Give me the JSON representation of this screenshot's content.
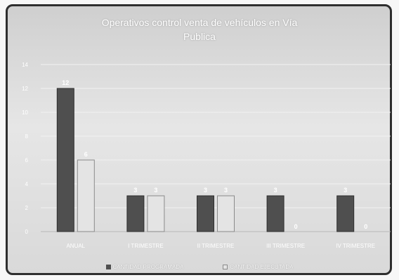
{
  "chart_data": {
    "type": "bar",
    "title_lines": [
      "Operativos control venta de vehículos en Vía",
      "Publica"
    ],
    "categories": [
      "ANUAL",
      "I TRIMESTRE",
      "II TRIMESTRE",
      "III TRIMESTRE",
      "IV TRIMESTRE"
    ],
    "series": [
      {
        "name": "CANTIDAD PROGRAMADA",
        "values": [
          12,
          3,
          3,
          3,
          3
        ],
        "color": "#4f4f4f"
      },
      {
        "name": "CANTIDAD EJECUTADA",
        "values": [
          6,
          3,
          3,
          0,
          0
        ],
        "color": "#e4e4e4"
      }
    ],
    "data_labels": [
      [
        "12",
        "3",
        "3",
        "3",
        "3"
      ],
      [
        "6",
        "3",
        "3",
        "0",
        "0"
      ]
    ],
    "ylim": [
      0,
      14
    ],
    "yticks": [
      "0",
      "2",
      "4",
      "6",
      "8",
      "10",
      "12",
      "14"
    ],
    "grid": true,
    "legend": "bottom"
  }
}
